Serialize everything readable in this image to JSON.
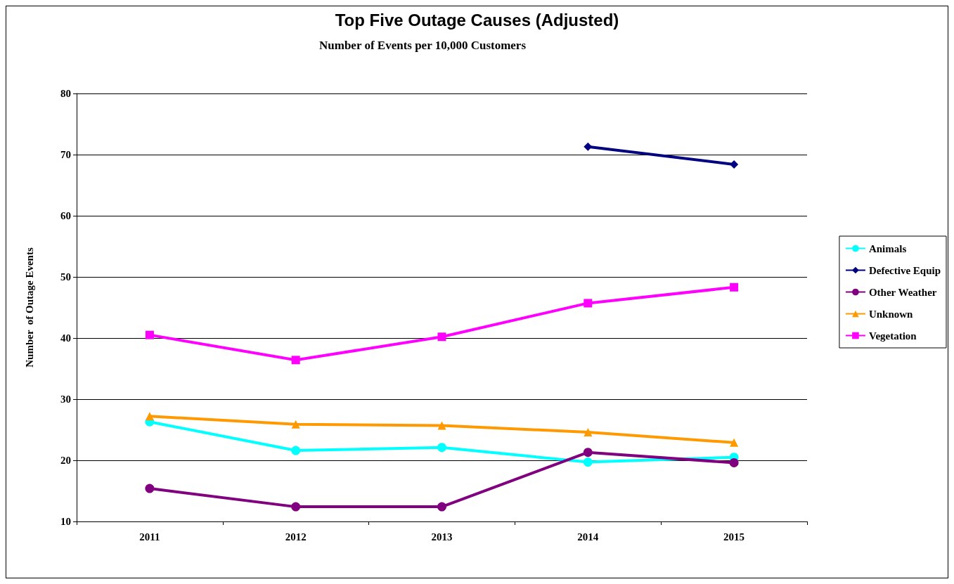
{
  "chart_data": {
    "type": "line",
    "title": "Top Five Outage Causes (Adjusted)",
    "subtitle": "Number of Events per 10,000 Customers",
    "ylabel": "Number  of Outage Events",
    "categories": [
      "2011",
      "2012",
      "2013",
      "2014",
      "2015"
    ],
    "ylim": [
      10,
      80
    ],
    "yticks": [
      10,
      20,
      30,
      40,
      50,
      60,
      70,
      80
    ],
    "grid": "y",
    "legend": "right",
    "line_style": "solid",
    "series": [
      {
        "name": "Animals",
        "color": "#00ffff",
        "marker": "circle",
        "values": [
          26.3,
          21.6,
          22.1,
          19.7,
          20.5
        ]
      },
      {
        "name": "Defective Equip",
        "color": "#000080",
        "marker": "diamond",
        "values": [
          null,
          null,
          null,
          71.3,
          68.4
        ]
      },
      {
        "name": "Other Weather",
        "color": "#800080",
        "marker": "circle",
        "values": [
          15.4,
          12.4,
          12.4,
          21.3,
          19.6
        ]
      },
      {
        "name": "Unknown",
        "color": "#ff9900",
        "marker": "triangle",
        "values": [
          27.2,
          25.9,
          25.7,
          24.6,
          22.9
        ]
      },
      {
        "name": "Vegetation",
        "color": "#ff00ff",
        "marker": "square",
        "values": [
          40.5,
          36.4,
          40.2,
          45.7,
          48.3
        ]
      }
    ]
  }
}
